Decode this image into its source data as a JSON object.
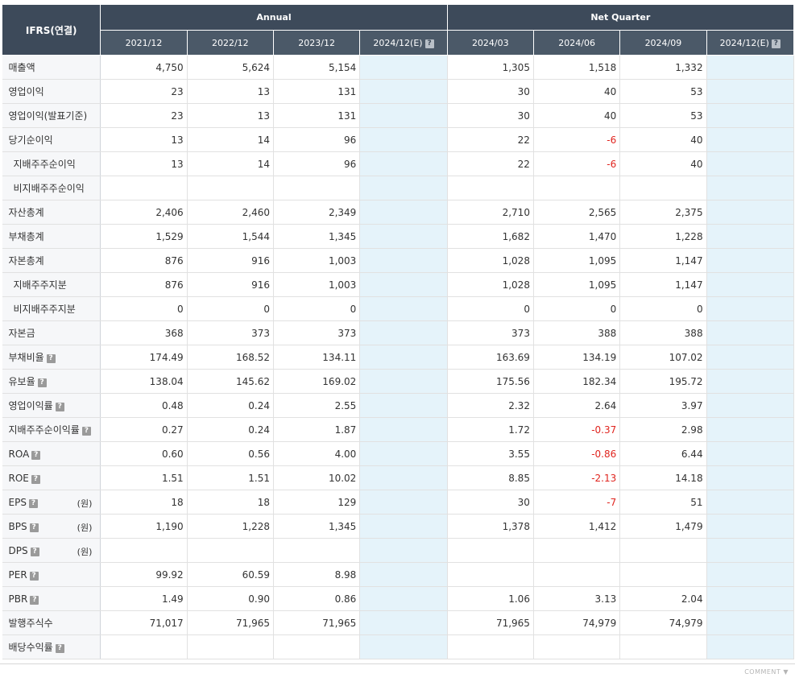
{
  "header": {
    "corner": "IFRS(연결)",
    "group_annual": "Annual",
    "group_quarter": "Net Quarter",
    "columns": [
      "2021/12",
      "2022/12",
      "2023/12",
      "2024/12(E)",
      "2024/03",
      "2024/06",
      "2024/09",
      "2024/12(E)"
    ],
    "help_glyph": "?"
  },
  "unit_label": "(원)",
  "rows": [
    {
      "label": "매출액",
      "values": [
        "4,750",
        "5,624",
        "5,154",
        "",
        "1,305",
        "1,518",
        "1,332",
        ""
      ]
    },
    {
      "label": "영업이익",
      "values": [
        "23",
        "13",
        "131",
        "",
        "30",
        "40",
        "53",
        ""
      ]
    },
    {
      "label": "영업이익(발표기준)",
      "values": [
        "23",
        "13",
        "131",
        "",
        "30",
        "40",
        "53",
        ""
      ]
    },
    {
      "label": "당기순이익",
      "values": [
        "13",
        "14",
        "96",
        "",
        "22",
        "-6",
        "40",
        ""
      ]
    },
    {
      "label": "지배주주순이익",
      "values": [
        "13",
        "14",
        "96",
        "",
        "22",
        "-6",
        "40",
        ""
      ]
    },
    {
      "label": "비지배주주순이익",
      "values": [
        "",
        "",
        "",
        "",
        "",
        "",
        "",
        ""
      ]
    },
    {
      "label": "자산총계",
      "values": [
        "2,406",
        "2,460",
        "2,349",
        "",
        "2,710",
        "2,565",
        "2,375",
        ""
      ]
    },
    {
      "label": "부채총계",
      "values": [
        "1,529",
        "1,544",
        "1,345",
        "",
        "1,682",
        "1,470",
        "1,228",
        ""
      ]
    },
    {
      "label": "자본총계",
      "values": [
        "876",
        "916",
        "1,003",
        "",
        "1,028",
        "1,095",
        "1,147",
        ""
      ]
    },
    {
      "label": "지배주주지분",
      "values": [
        "876",
        "916",
        "1,003",
        "",
        "1,028",
        "1,095",
        "1,147",
        ""
      ]
    },
    {
      "label": "비지배주주지분",
      "values": [
        "0",
        "0",
        "0",
        "",
        "0",
        "0",
        "0",
        ""
      ]
    },
    {
      "label": "자본금",
      "values": [
        "368",
        "373",
        "373",
        "",
        "373",
        "388",
        "388",
        ""
      ]
    },
    {
      "label": "부채비율",
      "values": [
        "174.49",
        "168.52",
        "134.11",
        "",
        "163.69",
        "134.19",
        "107.02",
        ""
      ]
    },
    {
      "label": "유보율",
      "values": [
        "138.04",
        "145.62",
        "169.02",
        "",
        "175.56",
        "182.34",
        "195.72",
        ""
      ]
    },
    {
      "label": "영업이익률",
      "values": [
        "0.48",
        "0.24",
        "2.55",
        "",
        "2.32",
        "2.64",
        "3.97",
        ""
      ]
    },
    {
      "label": "지배주주순이익률",
      "values": [
        "0.27",
        "0.24",
        "1.87",
        "",
        "1.72",
        "-0.37",
        "2.98",
        ""
      ]
    },
    {
      "label": "ROA",
      "values": [
        "0.60",
        "0.56",
        "4.00",
        "",
        "3.55",
        "-0.86",
        "6.44",
        ""
      ]
    },
    {
      "label": "ROE",
      "values": [
        "1.51",
        "1.51",
        "10.02",
        "",
        "8.85",
        "-2.13",
        "14.18",
        ""
      ]
    },
    {
      "label": "EPS",
      "values": [
        "18",
        "18",
        "129",
        "",
        "30",
        "-7",
        "51",
        ""
      ]
    },
    {
      "label": "BPS",
      "values": [
        "1,190",
        "1,228",
        "1,345",
        "",
        "1,378",
        "1,412",
        "1,479",
        ""
      ]
    },
    {
      "label": "DPS",
      "values": [
        "",
        "",
        "",
        "",
        "",
        "",
        "",
        ""
      ]
    },
    {
      "label": "PER",
      "values": [
        "99.92",
        "60.59",
        "8.98",
        "",
        "",
        "",
        "",
        ""
      ]
    },
    {
      "label": "PBR",
      "values": [
        "1.49",
        "0.90",
        "0.86",
        "",
        "1.06",
        "3.13",
        "2.04",
        ""
      ]
    },
    {
      "label": "발행주식수",
      "values": [
        "71,017",
        "71,965",
        "71,965",
        "",
        "71,965",
        "74,979",
        "74,979",
        ""
      ]
    },
    {
      "label": "배당수익률",
      "values": [
        "",
        "",
        "",
        "",
        "",
        "",
        "",
        ""
      ]
    }
  ],
  "footer": {
    "comment": "COMMENT ▼"
  },
  "colors": {
    "header_bg": "#3d4a5a",
    "estimate_bg": "#e5f3fa",
    "negative": "#e0251f"
  }
}
